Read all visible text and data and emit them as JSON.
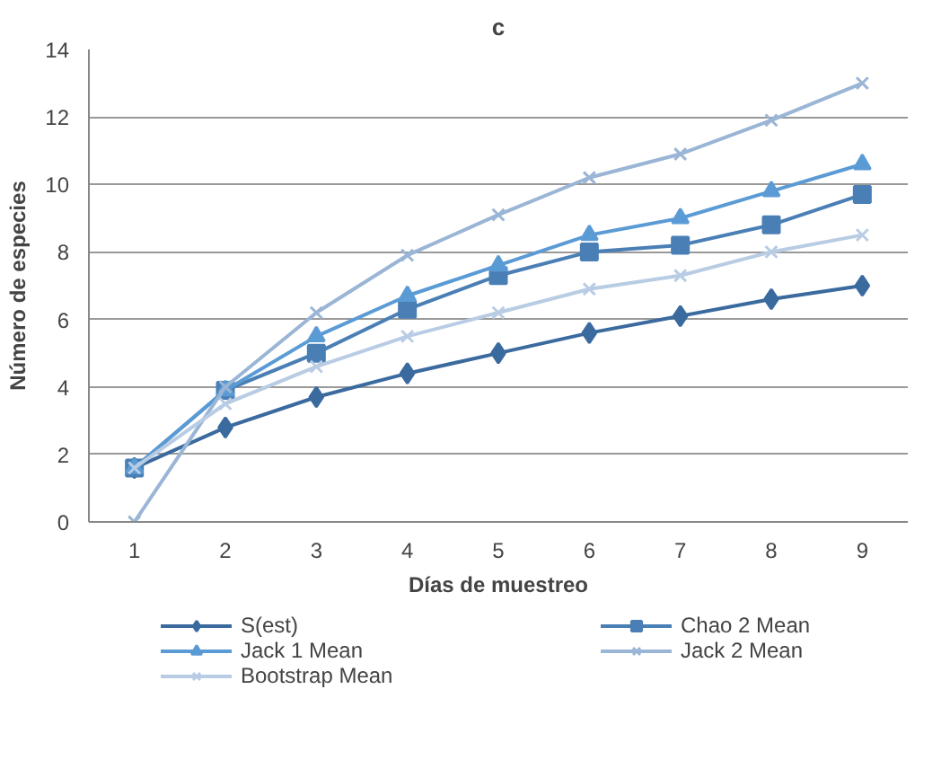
{
  "chart_data": {
    "type": "line",
    "title": "c",
    "xlabel": "Días de muestreo",
    "ylabel": "Número de especies",
    "categories": [
      "1",
      "2",
      "3",
      "4",
      "5",
      "6",
      "7",
      "8",
      "9"
    ],
    "ylim": [
      0,
      14
    ],
    "yticks": [
      0,
      2,
      4,
      6,
      8,
      10,
      12,
      14
    ],
    "grid": "y",
    "legend": "bottom",
    "series": [
      {
        "name": "S(est)",
        "color": "#3a6a9e",
        "marker": "diamond",
        "values": [
          1.6,
          2.8,
          3.7,
          4.4,
          5.0,
          5.6,
          6.1,
          6.6,
          7.0
        ]
      },
      {
        "name": "Chao 2 Mean",
        "color": "#4a7fb5",
        "marker": "square",
        "values": [
          1.6,
          3.9,
          5.0,
          6.3,
          7.3,
          8.0,
          8.2,
          8.8,
          9.7
        ]
      },
      {
        "name": "Jack 1 Mean",
        "color": "#5b9bd5",
        "marker": "triangle",
        "values": [
          1.6,
          3.9,
          5.5,
          6.7,
          7.6,
          8.5,
          9.0,
          9.8,
          10.6
        ]
      },
      {
        "name": "Jack 2 Mean",
        "color": "#9ab5d5",
        "marker": "cross",
        "values": [
          0,
          4.0,
          6.2,
          7.9,
          9.1,
          10.2,
          10.9,
          11.9,
          13.0
        ]
      },
      {
        "name": "Bootstrap Mean",
        "color": "#b8cce4",
        "marker": "cross",
        "values": [
          1.6,
          3.5,
          4.6,
          5.5,
          6.2,
          6.9,
          7.3,
          8.0,
          8.5
        ]
      }
    ]
  }
}
